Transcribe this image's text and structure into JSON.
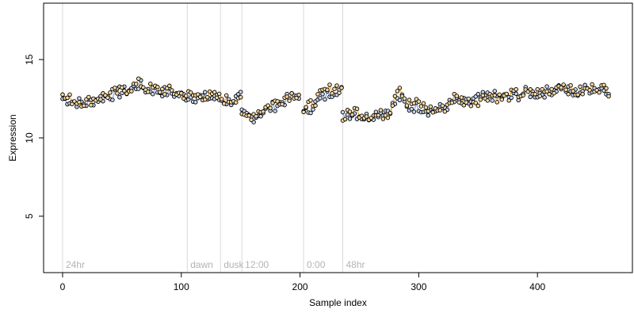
{
  "chart_data": {
    "type": "scatter",
    "title": "",
    "xlabel": "Sample index",
    "ylabel": "Expression",
    "xlim": [
      -16,
      480
    ],
    "ylim": [
      1.4,
      18.6
    ],
    "x_ticks": [
      0,
      100,
      200,
      300,
      400
    ],
    "y_ticks": [
      5,
      10,
      15
    ],
    "grid": false,
    "colors": {
      "point_fill_a": "#c8d4ee",
      "point_fill_b": "#f8d8a0",
      "line_a": "#7b9bd6",
      "line_b": "#f0a830",
      "vline": "#d9d9d9",
      "marker_text": "#b3b3b3"
    },
    "markers": [
      {
        "x": 0,
        "label": "24hr"
      },
      {
        "x": 105,
        "label": "dawn"
      },
      {
        "x": 133,
        "label": "dusk"
      },
      {
        "x": 151,
        "label": "12:00"
      },
      {
        "x": 203,
        "label": "0:00"
      },
      {
        "x": 236,
        "label": "48hr"
      }
    ],
    "series": [
      {
        "style": "a",
        "segments": [
          [
            [
              0,
              12.5
            ],
            [
              10,
              12.3
            ],
            [
              20,
              12.2
            ],
            [
              30,
              12.5
            ],
            [
              40,
              12.7
            ],
            [
              50,
              12.9
            ],
            [
              60,
              13.2
            ],
            [
              65,
              13.4
            ],
            [
              70,
              13.1
            ],
            [
              80,
              13.0
            ],
            [
              90,
              12.9
            ],
            [
              100,
              12.7
            ],
            [
              110,
              12.6
            ],
            [
              120,
              12.6
            ],
            [
              130,
              12.5
            ],
            [
              140,
              12.3
            ],
            [
              150,
              12.6
            ]
          ],
          [
            [
              151,
              11.5
            ],
            [
              160,
              11.3
            ],
            [
              170,
              11.7
            ],
            [
              180,
              12.1
            ],
            [
              190,
              12.5
            ],
            [
              200,
              12.8
            ]
          ],
          [
            [
              203,
              11.5
            ],
            [
              210,
              12.0
            ],
            [
              220,
              12.6
            ],
            [
              230,
              13.1
            ],
            [
              235,
              13.0
            ]
          ],
          [
            [
              236,
              11.4
            ],
            [
              245,
              11.6
            ],
            [
              255,
              11.3
            ],
            [
              265,
              11.6
            ],
            [
              275,
              11.8
            ],
            [
              285,
              12.6
            ],
            [
              290,
              11.9
            ],
            [
              300,
              12.0
            ],
            [
              310,
              11.7
            ],
            [
              320,
              11.9
            ],
            [
              330,
              12.3
            ],
            [
              340,
              12.2
            ],
            [
              350,
              12.5
            ],
            [
              360,
              12.7
            ],
            [
              370,
              12.6
            ],
            [
              380,
              12.6
            ],
            [
              390,
              12.9
            ],
            [
              400,
              12.8
            ],
            [
              410,
              13.0
            ],
            [
              420,
              13.3
            ],
            [
              430,
              12.8
            ],
            [
              440,
              13.1
            ],
            [
              450,
              13.2
            ],
            [
              460,
              13.1
            ]
          ]
        ]
      },
      {
        "style": "b",
        "segments": [
          [
            [
              0,
              12.6
            ],
            [
              10,
              12.4
            ],
            [
              20,
              12.3
            ],
            [
              30,
              12.6
            ],
            [
              40,
              12.8
            ],
            [
              50,
              13.0
            ],
            [
              60,
              13.3
            ],
            [
              65,
              13.5
            ],
            [
              70,
              13.2
            ],
            [
              80,
              13.1
            ],
            [
              90,
              13.0
            ],
            [
              100,
              12.8
            ],
            [
              110,
              12.7
            ],
            [
              120,
              12.7
            ],
            [
              130,
              12.6
            ],
            [
              140,
              12.4
            ],
            [
              150,
              12.7
            ]
          ],
          [
            [
              151,
              11.2
            ],
            [
              160,
              11.5
            ],
            [
              170,
              11.9
            ],
            [
              180,
              12.3
            ],
            [
              190,
              12.7
            ],
            [
              200,
              12.9
            ]
          ],
          [
            [
              203,
              11.7
            ],
            [
              210,
              12.2
            ],
            [
              220,
              12.9
            ],
            [
              230,
              13.3
            ],
            [
              235,
              13.1
            ]
          ],
          [
            [
              236,
              11.2
            ],
            [
              245,
              11.8
            ],
            [
              255,
              11.5
            ],
            [
              265,
              11.4
            ],
            [
              275,
              11.6
            ],
            [
              283,
              13.5
            ],
            [
              290,
              12.2
            ],
            [
              300,
              12.2
            ],
            [
              310,
              11.8
            ],
            [
              320,
              11.8
            ],
            [
              330,
              12.6
            ],
            [
              340,
              12.3
            ],
            [
              350,
              12.4
            ],
            [
              360,
              12.8
            ],
            [
              370,
              12.5
            ],
            [
              380,
              12.8
            ],
            [
              390,
              12.8
            ],
            [
              400,
              12.9
            ],
            [
              410,
              12.9
            ],
            [
              420,
              13.5
            ],
            [
              430,
              12.9
            ],
            [
              440,
              13.0
            ],
            [
              450,
              13.3
            ],
            [
              460,
              13.0
            ]
          ]
        ]
      }
    ]
  }
}
